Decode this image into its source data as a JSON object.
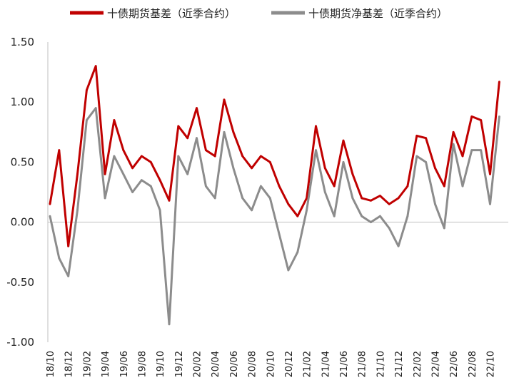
{
  "chart_data": {
    "type": "line",
    "title": "",
    "xlabel": "",
    "ylabel": "",
    "ylim": [
      -1.0,
      1.5
    ],
    "yticks": [
      1.5,
      1.0,
      0.5,
      0.0,
      -0.5,
      -1.0
    ],
    "ytick_labels": [
      "1.50",
      "1.00",
      "0.50",
      "0.00",
      "-0.50",
      "-1.00"
    ],
    "xtick_labels": [
      "18/10",
      "18/12",
      "19/02",
      "19/04",
      "19/06",
      "19/08",
      "19/10",
      "19/12",
      "20/02",
      "20/04",
      "20/06",
      "20/08",
      "20/10",
      "20/12",
      "21/02",
      "21/04",
      "21/06",
      "21/08",
      "21/10",
      "21/12",
      "22/02",
      "22/04",
      "22/06",
      "22/08",
      "22/10"
    ],
    "x_start": "18/10",
    "x_end": "22/11",
    "grid": false,
    "legend_position": "top",
    "series": [
      {
        "name": "十债期货基差（近季合约）",
        "color": "#c00000",
        "x": [
          "18/10",
          "18/11",
          "18/12",
          "19/01",
          "19/02",
          "19/03",
          "19/04",
          "19/05",
          "19/06",
          "19/07",
          "19/08",
          "19/09",
          "19/10",
          "19/11",
          "19/12",
          "20/01",
          "20/02",
          "20/03",
          "20/04",
          "20/05",
          "20/06",
          "20/07",
          "20/08",
          "20/09",
          "20/10",
          "20/11",
          "20/12",
          "21/01",
          "21/02",
          "21/03",
          "21/04",
          "21/05",
          "21/06",
          "21/07",
          "21/08",
          "21/09",
          "21/10",
          "21/11",
          "21/12",
          "22/01",
          "22/02",
          "22/03",
          "22/04",
          "22/05",
          "22/06",
          "22/07",
          "22/08",
          "22/09",
          "22/10",
          "22/11"
        ],
        "values": [
          0.15,
          0.6,
          -0.2,
          0.4,
          1.1,
          1.3,
          0.4,
          0.85,
          0.6,
          0.45,
          0.55,
          0.5,
          0.35,
          0.18,
          0.8,
          0.7,
          0.95,
          0.6,
          0.55,
          1.02,
          0.75,
          0.55,
          0.45,
          0.55,
          0.5,
          0.3,
          0.15,
          0.05,
          0.2,
          0.8,
          0.45,
          0.3,
          0.68,
          0.4,
          0.2,
          0.18,
          0.22,
          0.15,
          0.2,
          0.3,
          0.72,
          0.7,
          0.45,
          0.3,
          0.75,
          0.55,
          0.88,
          0.85,
          0.4,
          1.17
        ]
      },
      {
        "name": "十债期货净基差（近季合约）",
        "color": "#8c8c8c",
        "x": [
          "18/10",
          "18/11",
          "18/12",
          "19/01",
          "19/02",
          "19/03",
          "19/04",
          "19/05",
          "19/06",
          "19/07",
          "19/08",
          "19/09",
          "19/10",
          "19/11",
          "19/12",
          "20/01",
          "20/02",
          "20/03",
          "20/04",
          "20/05",
          "20/06",
          "20/07",
          "20/08",
          "20/09",
          "20/10",
          "20/11",
          "20/12",
          "21/01",
          "21/02",
          "21/03",
          "21/04",
          "21/05",
          "21/06",
          "21/07",
          "21/08",
          "21/09",
          "21/10",
          "21/11",
          "21/12",
          "22/01",
          "22/02",
          "22/03",
          "22/04",
          "22/05",
          "22/06",
          "22/07",
          "22/08",
          "22/09",
          "22/10",
          "22/11"
        ],
        "values": [
          0.05,
          -0.3,
          -0.45,
          0.1,
          0.85,
          0.95,
          0.2,
          0.55,
          0.4,
          0.25,
          0.35,
          0.3,
          0.1,
          -0.85,
          0.55,
          0.4,
          0.7,
          0.3,
          0.2,
          0.75,
          0.45,
          0.2,
          0.1,
          0.3,
          0.2,
          -0.1,
          -0.4,
          -0.25,
          0.1,
          0.6,
          0.25,
          0.05,
          0.5,
          0.2,
          0.05,
          0.0,
          0.05,
          -0.05,
          -0.2,
          0.05,
          0.55,
          0.5,
          0.15,
          -0.05,
          0.65,
          0.3,
          0.6,
          0.6,
          0.15,
          0.88
        ]
      }
    ]
  }
}
